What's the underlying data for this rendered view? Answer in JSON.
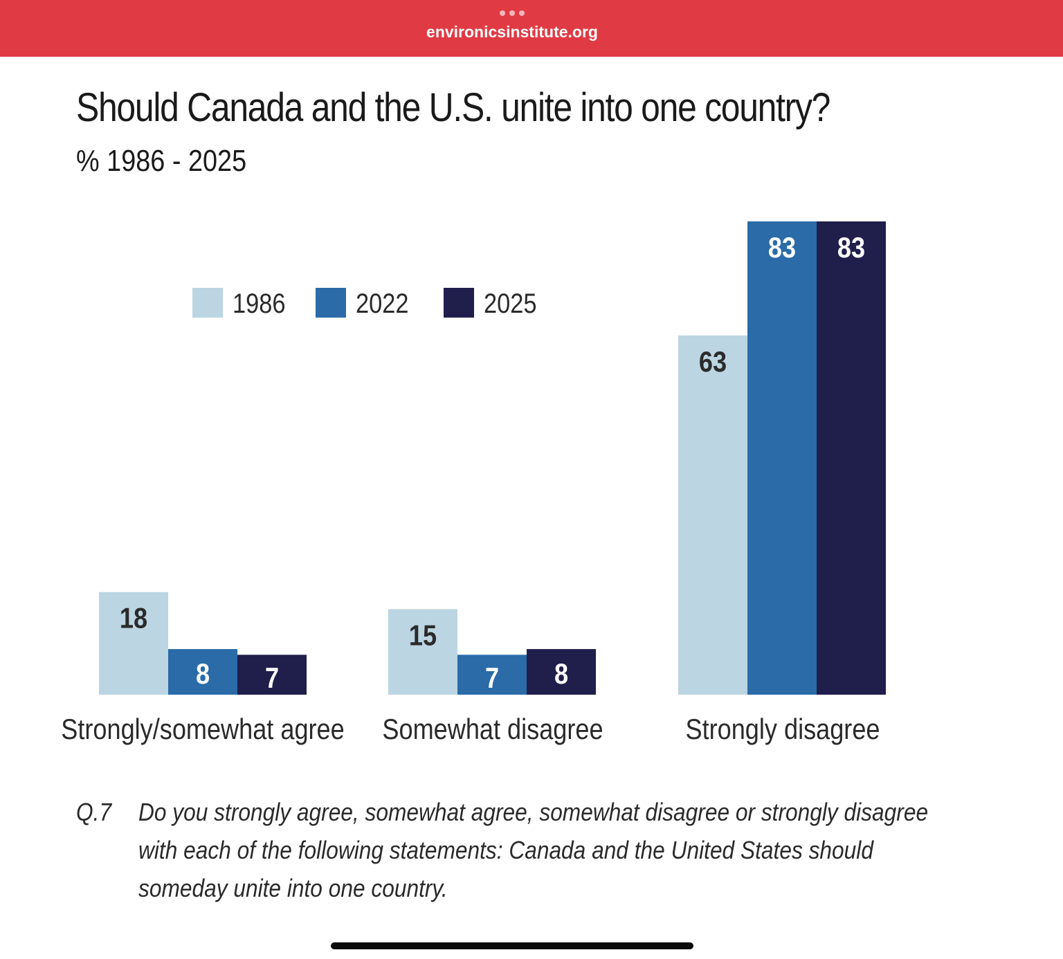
{
  "browser": {
    "url": "environicsinstitute.org"
  },
  "title": "Should Canada and the U.S. unite into one country?",
  "subtitle": "%  1986 - 2025",
  "chart_data": {
    "type": "bar",
    "categories": [
      "Strongly/somewhat agree",
      "Somewhat disagree",
      "Strongly disagree"
    ],
    "series": [
      {
        "name": "1986",
        "values": [
          18,
          15,
          63
        ],
        "color": "#BBD5E2",
        "label_color": "#2b2b2b"
      },
      {
        "name": "2022",
        "values": [
          8,
          7,
          83
        ],
        "color": "#2A6BA8",
        "label_color": "#ffffff"
      },
      {
        "name": "2025",
        "values": [
          7,
          8,
          83
        ],
        "color": "#201E4B",
        "label_color": "#ffffff"
      }
    ],
    "legend": "top-left",
    "grid": false,
    "ylim": [
      0,
      83
    ]
  },
  "footnote": {
    "number": "Q.7",
    "text": "Do you strongly agree, somewhat agree, somewhat disagree or strongly disagree with each of the following statements:  Canada and the United States should someday unite into one country."
  }
}
